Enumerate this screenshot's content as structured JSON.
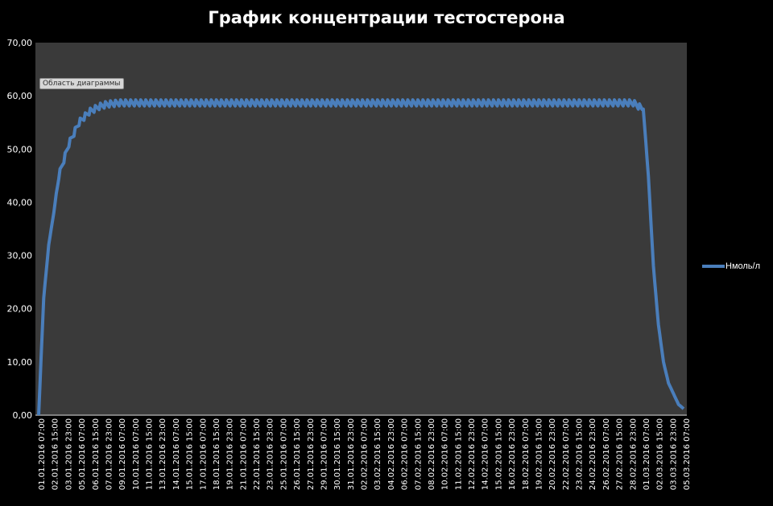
{
  "chart_data": {
    "type": "line",
    "title": "График концентрации тестостерона",
    "xlabel": "",
    "ylabel": "",
    "ylim": [
      0,
      70
    ],
    "y_ticks": [
      "0,00",
      "10,00",
      "20,00",
      "30,00",
      "40,00",
      "50,00",
      "60,00",
      "70,00"
    ],
    "x_tick_labels": [
      "01.01.2016 07:00",
      "02.01.2016 15:00",
      "03.01.2016 23:00",
      "05.01.2016 07:00",
      "06.01.2016 15:00",
      "07.01.2016 23:00",
      "09.01.2016 07:00",
      "10.01.2016 07:00",
      "11.01.2016 15:00",
      "13.01.2016 23:00",
      "14.01.2016 07:00",
      "15.01.2016 15:00",
      "17.01.2016 07:00",
      "18.01.2016 15:00",
      "19.01.2016 23:00",
      "21.01.2016 07:00",
      "22.01.2016 15:00",
      "23.01.2016 23:00",
      "25.01.2016 07:00",
      "26.01.2016 15:00",
      "27.01.2016 23:00",
      "29.01.2016 07:00",
      "30.01.2016 15:00",
      "31.01.2016 23:00",
      "02.02.2016 07:00",
      "03.02.2016 15:00",
      "04.02.2016 23:00",
      "06.02.2016 07:00",
      "07.02.2016 15:00",
      "08.02.2016 23:00",
      "10.02.2016 07:00",
      "11.02.2016 15:00",
      "12.02.2016 23:00",
      "14.02.2016 07:00",
      "15.02.2016 15:00",
      "16.02.2016 23:00",
      "18.02.2016 07:00",
      "19.02.2016 15:00",
      "20.02.2016 23:00",
      "22.02.2016 07:00",
      "23.02.2016 15:00",
      "24.02.2016 23:00",
      "26.02.2016 07:00",
      "27.02.2016 15:00",
      "28.02.2016 23:00",
      "01.03.2016 07:00",
      "02.03.2016 15:00",
      "03.03.2016 23:00",
      "05.03.2016 07:00"
    ],
    "series": [
      {
        "name": "Нмоль/л",
        "color": "#4a7ebb",
        "x": [
          "01.01.2016 07:00",
          "01.01.2016 19:00",
          "02.01.2016 07:00",
          "02.01.2016 19:00",
          "03.01.2016 07:00",
          "03.01.2016 19:00",
          "04.01.2016 07:00",
          "04.01.2016 19:00",
          "05.01.2016 07:00",
          "05.01.2016 19:00",
          "06.01.2016 07:00",
          "06.01.2016 19:00",
          "07.01.2016 07:00",
          "07.01.2016 19:00",
          "08.01.2016 07:00",
          "08.01.2016 19:00",
          "09.01.2016 07:00",
          "10.01.2016 07:00",
          "14.01.2016 07:00",
          "20.01.2016 07:00",
          "26.01.2016 07:00",
          "01.02.2016 07:00",
          "07.02.2016 07:00",
          "13.02.2016 07:00",
          "19.02.2016 07:00",
          "25.02.2016 07:00",
          "29.02.2016 07:00",
          "01.03.2016 07:00",
          "01.03.2016 19:00",
          "02.03.2016 07:00",
          "02.03.2016 19:00",
          "03.03.2016 07:00",
          "03.03.2016 19:00",
          "04.03.2016 07:00",
          "04.03.2016 19:00",
          "05.03.2016 07:00"
        ],
        "values": [
          0,
          22,
          32,
          38,
          45,
          48,
          51,
          53,
          55,
          56,
          57,
          57.5,
          58,
          58.3,
          58.5,
          58.6,
          58.7,
          58.7,
          58.7,
          58.7,
          58.7,
          58.7,
          58.7,
          58.7,
          58.7,
          58.7,
          58.7,
          57.5,
          45,
          28,
          17,
          10,
          6,
          4,
          2,
          1.2
        ]
      }
    ],
    "legend_position": "right",
    "grid": false
  },
  "ui": {
    "tooltip_text": "Область диаграммы"
  },
  "colors": {
    "background": "#000000",
    "plot_area": "#3a3a3a",
    "series_line": "#4a7ebb",
    "text": "#ffffff"
  }
}
